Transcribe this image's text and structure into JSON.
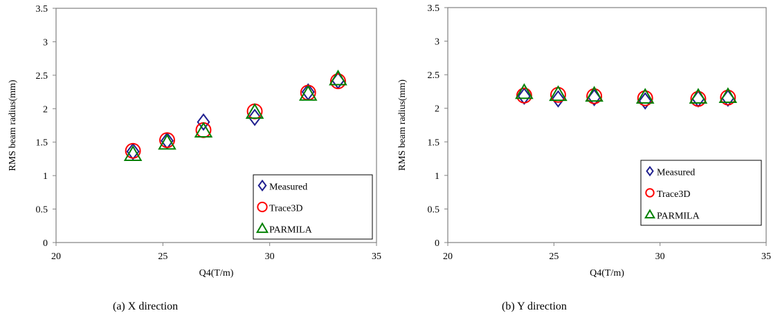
{
  "captions": [
    "(a) X direction",
    "(b) Y direction"
  ],
  "chart_data": [
    {
      "type": "scatter",
      "title": "",
      "xlabel": "Q4(T/m)",
      "ylabel": "RMS beam radius(mm)",
      "xlim": [
        20,
        35
      ],
      "ylim": [
        0,
        3.5
      ],
      "xticks": [
        "20",
        "25",
        "30",
        "35"
      ],
      "yticks": [
        "0",
        "0.5",
        "1",
        "1.5",
        "2",
        "2.5",
        "3",
        "3.5"
      ],
      "legend_position": "bottom-right",
      "series": [
        {
          "name": "Measured",
          "marker": "diamond",
          "color": "#1f1f8f",
          "x": [
            23.6,
            25.2,
            26.9,
            29.3,
            31.8,
            33.2
          ],
          "y": [
            1.36,
            1.52,
            1.8,
            1.87,
            2.25,
            2.42
          ]
        },
        {
          "name": "Trace3D",
          "marker": "circle",
          "color": "#ff0000",
          "x": [
            23.6,
            25.2,
            26.9,
            29.3,
            31.8,
            33.2
          ],
          "y": [
            1.37,
            1.53,
            1.68,
            1.96,
            2.24,
            2.41
          ]
        },
        {
          "name": "PARMILA",
          "marker": "triangle",
          "color": "#008000",
          "x": [
            23.6,
            25.2,
            26.9,
            29.3,
            31.8,
            33.2
          ],
          "y": [
            1.32,
            1.49,
            1.67,
            1.95,
            2.22,
            2.45
          ]
        }
      ]
    },
    {
      "type": "scatter",
      "title": "",
      "xlabel": "Q4(T/m)",
      "ylabel": "RMS beam  radius(mm)",
      "xlim": [
        20,
        35
      ],
      "ylim": [
        0,
        3.5
      ],
      "xticks": [
        "20",
        "25",
        "30",
        "35"
      ],
      "yticks": [
        "0",
        "0.5",
        "1",
        "1.5",
        "2",
        "2.5",
        "3",
        "3.5"
      ],
      "legend_position": "bottom-right",
      "series": [
        {
          "name": "Measured",
          "marker": "diamond",
          "color": "#1f1f8f",
          "x": [
            23.6,
            25.2,
            26.9,
            29.3,
            31.8,
            33.2
          ],
          "y": [
            2.18,
            2.14,
            2.16,
            2.11,
            2.14,
            2.15
          ]
        },
        {
          "name": "Trace3D",
          "marker": "circle",
          "color": "#ff0000",
          "x": [
            23.6,
            25.2,
            26.9,
            29.3,
            31.8,
            33.2
          ],
          "y": [
            2.19,
            2.2,
            2.18,
            2.15,
            2.14,
            2.16
          ]
        },
        {
          "name": "PARMILA",
          "marker": "triangle",
          "color": "#008000",
          "x": [
            23.6,
            25.2,
            26.9,
            29.3,
            31.8,
            33.2
          ],
          "y": [
            2.24,
            2.21,
            2.2,
            2.17,
            2.17,
            2.18
          ]
        }
      ]
    }
  ]
}
